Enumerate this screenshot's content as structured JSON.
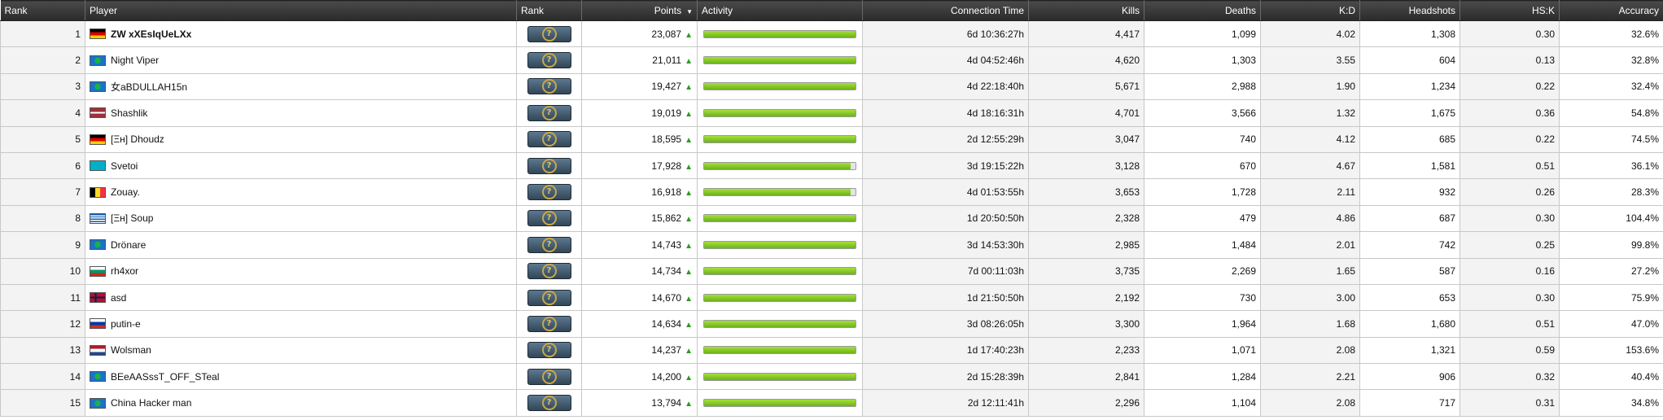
{
  "columns": {
    "rank": "Rank",
    "player": "Player",
    "skill_rank": "Rank",
    "points": "Points",
    "activity": "Activity",
    "connection_time": "Connection Time",
    "kills": "Kills",
    "deaths": "Deaths",
    "kd": "K:D",
    "headshots": "Headshots",
    "hsk": "HS:K",
    "accuracy": "Accuracy"
  },
  "colors": {
    "header_bg": "#333333",
    "activity_fill": "#7cc61e",
    "arrow_up": "#2d9b1f",
    "badge_bg": "#3e5568"
  },
  "icons": {
    "sort": "sort-down-icon",
    "trend": "arrow-up-icon",
    "skill_rank": "unranked-question-badge"
  },
  "rows": [
    {
      "rank": "1",
      "player": "ZW xXEsIqUeLXx",
      "bold": true,
      "flag": "germany",
      "points": "23,087",
      "activity": 1.0,
      "time": "6d 10:36:27h",
      "kills": "4,417",
      "deaths": "1,099",
      "kd": "4.02",
      "headshots": "1,308",
      "hsk": "0.30",
      "accuracy": "32.6%"
    },
    {
      "rank": "2",
      "player": "Night Viper",
      "bold": false,
      "flag": "unknown",
      "points": "21,011",
      "activity": 1.0,
      "time": "4d 04:52:46h",
      "kills": "4,620",
      "deaths": "1,303",
      "kd": "3.55",
      "headshots": "604",
      "hsk": "0.13",
      "accuracy": "32.8%"
    },
    {
      "rank": "3",
      "player": "女aBDULLAH15n",
      "bold": false,
      "flag": "unknown",
      "points": "19,427",
      "activity": 1.0,
      "time": "4d 22:18:40h",
      "kills": "5,671",
      "deaths": "2,988",
      "kd": "1.90",
      "headshots": "1,234",
      "hsk": "0.22",
      "accuracy": "32.4%"
    },
    {
      "rank": "4",
      "player": "Shashlik",
      "bold": false,
      "flag": "latvia",
      "points": "19,019",
      "activity": 1.0,
      "time": "4d 18:16:31h",
      "kills": "4,701",
      "deaths": "3,566",
      "kd": "1.32",
      "headshots": "1,675",
      "hsk": "0.36",
      "accuracy": "54.8%"
    },
    {
      "rank": "5",
      "player": "[Ξн] Dhoudz",
      "bold": false,
      "flag": "germany",
      "points": "18,595",
      "activity": 1.0,
      "time": "2d 12:55:29h",
      "kills": "3,047",
      "deaths": "740",
      "kd": "4.12",
      "headshots": "685",
      "hsk": "0.22",
      "accuracy": "74.5%"
    },
    {
      "rank": "6",
      "player": "Svetoi",
      "bold": false,
      "flag": "kazakhstan",
      "points": "17,928",
      "activity": 0.97,
      "time": "3d 19:15:22h",
      "kills": "3,128",
      "deaths": "670",
      "kd": "4.67",
      "headshots": "1,581",
      "hsk": "0.51",
      "accuracy": "36.1%"
    },
    {
      "rank": "7",
      "player": "Zouay.",
      "bold": false,
      "flag": "belgium",
      "points": "16,918",
      "activity": 0.97,
      "time": "4d 01:53:55h",
      "kills": "3,653",
      "deaths": "1,728",
      "kd": "2.11",
      "headshots": "932",
      "hsk": "0.26",
      "accuracy": "28.3%"
    },
    {
      "rank": "8",
      "player": "[Ξн] Soup",
      "bold": false,
      "flag": "greece",
      "points": "15,862",
      "activity": 1.0,
      "time": "1d 20:50:50h",
      "kills": "2,328",
      "deaths": "479",
      "kd": "4.86",
      "headshots": "687",
      "hsk": "0.30",
      "accuracy": "104.4%"
    },
    {
      "rank": "9",
      "player": "Drönare",
      "bold": false,
      "flag": "unknown",
      "points": "14,743",
      "activity": 1.0,
      "time": "3d 14:53:30h",
      "kills": "2,985",
      "deaths": "1,484",
      "kd": "2.01",
      "headshots": "742",
      "hsk": "0.25",
      "accuracy": "99.8%"
    },
    {
      "rank": "10",
      "player": "rh4xor",
      "bold": false,
      "flag": "bulgaria",
      "points": "14,734",
      "activity": 1.0,
      "time": "7d 00:11:03h",
      "kills": "3,735",
      "deaths": "2,269",
      "kd": "1.65",
      "headshots": "587",
      "hsk": "0.16",
      "accuracy": "27.2%"
    },
    {
      "rank": "11",
      "player": "asd",
      "bold": false,
      "flag": "norway",
      "points": "14,670",
      "activity": 1.0,
      "time": "1d 21:50:50h",
      "kills": "2,192",
      "deaths": "730",
      "kd": "3.00",
      "headshots": "653",
      "hsk": "0.30",
      "accuracy": "75.9%"
    },
    {
      "rank": "12",
      "player": "putin-e",
      "bold": false,
      "flag": "russia",
      "points": "14,634",
      "activity": 1.0,
      "time": "3d 08:26:05h",
      "kills": "3,300",
      "deaths": "1,964",
      "kd": "1.68",
      "headshots": "1,680",
      "hsk": "0.51",
      "accuracy": "47.0%"
    },
    {
      "rank": "13",
      "player": "Wolsman",
      "bold": false,
      "flag": "netherlands",
      "points": "14,237",
      "activity": 1.0,
      "time": "1d 17:40:23h",
      "kills": "2,233",
      "deaths": "1,071",
      "kd": "2.08",
      "headshots": "1,321",
      "hsk": "0.59",
      "accuracy": "153.6%"
    },
    {
      "rank": "14",
      "player": "BEeAASssT_OFF_STeal",
      "bold": false,
      "flag": "unknown",
      "points": "14,200",
      "activity": 1.0,
      "time": "2d 15:28:39h",
      "kills": "2,841",
      "deaths": "1,284",
      "kd": "2.21",
      "headshots": "906",
      "hsk": "0.32",
      "accuracy": "40.4%"
    },
    {
      "rank": "15",
      "player": "China Hacker man",
      "bold": false,
      "flag": "unknown",
      "points": "13,794",
      "activity": 1.0,
      "time": "2d 12:11:41h",
      "kills": "2,296",
      "deaths": "1,104",
      "kd": "2.08",
      "headshots": "717",
      "hsk": "0.31",
      "accuracy": "34.8%"
    }
  ]
}
